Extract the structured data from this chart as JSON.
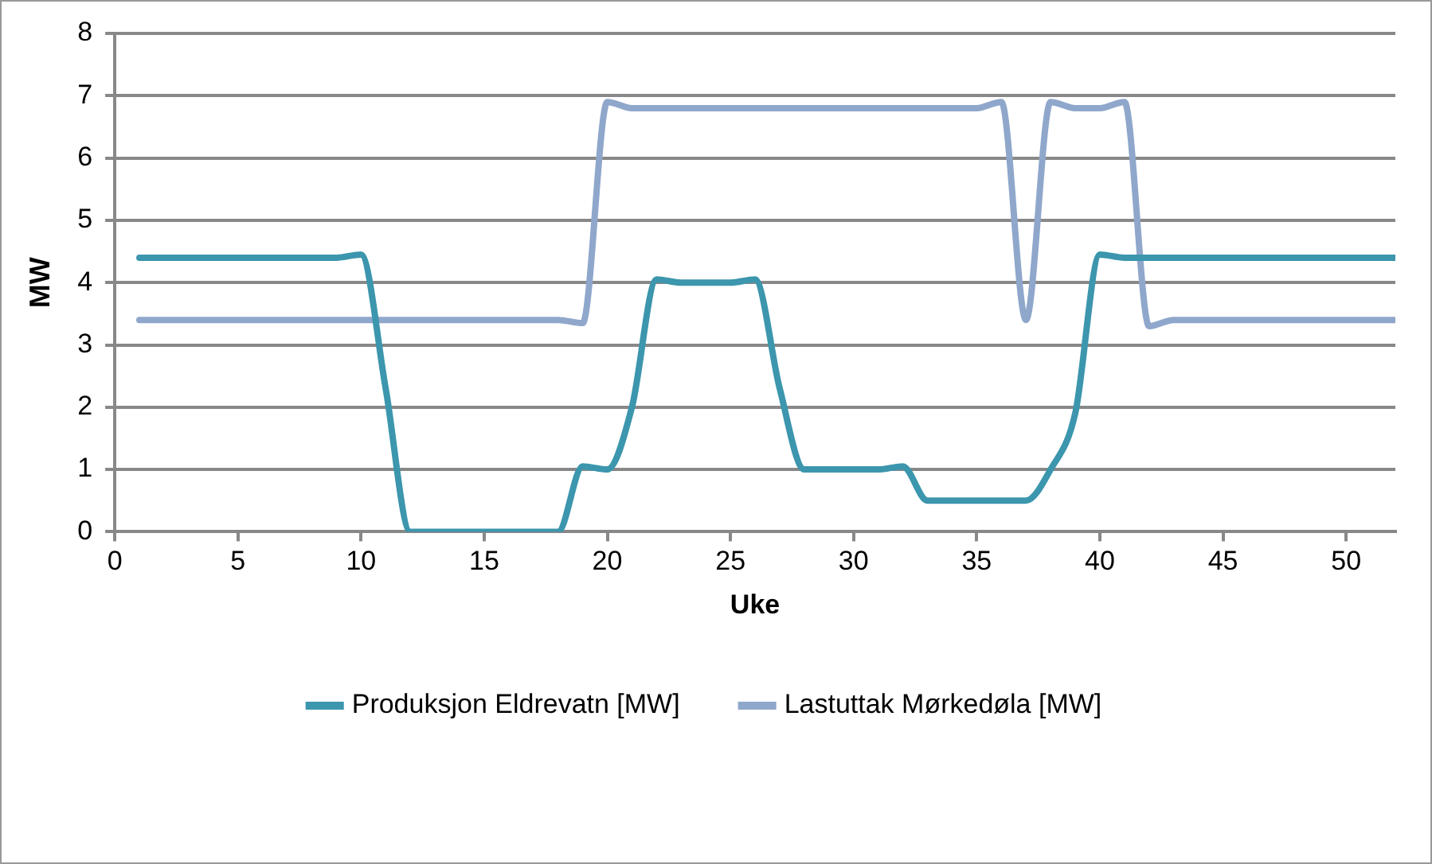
{
  "chart_data": {
    "type": "line",
    "xlabel": "Uke",
    "ylabel": "MW",
    "x": [
      1,
      2,
      3,
      4,
      5,
      6,
      7,
      8,
      9,
      10,
      11,
      12,
      13,
      14,
      15,
      16,
      17,
      18,
      19,
      20,
      21,
      22,
      23,
      24,
      25,
      26,
      27,
      28,
      29,
      30,
      31,
      32,
      33,
      34,
      35,
      36,
      37,
      38,
      39,
      40,
      41,
      42,
      43,
      44,
      45,
      46,
      47,
      48,
      49,
      50,
      51,
      52
    ],
    "series": [
      {
        "name": "Produksjon Eldrevatn [MW]",
        "color": "#3c96ad",
        "values": [
          4.4,
          4.4,
          4.4,
          4.4,
          4.4,
          4.4,
          4.4,
          4.4,
          4.4,
          4.45,
          2.3,
          0,
          0,
          0,
          0,
          0,
          0,
          0,
          1.05,
          1.0,
          2.0,
          4.05,
          4.0,
          4.0,
          4.0,
          4.05,
          2.3,
          1.0,
          1.0,
          1.0,
          1.0,
          1.05,
          0.5,
          0.5,
          0.5,
          0.5,
          0.5,
          1.0,
          1.9,
          4.45,
          4.4,
          4.4,
          4.4,
          4.4,
          4.4,
          4.4,
          4.4,
          4.4,
          4.4,
          4.4,
          4.4,
          4.4
        ]
      },
      {
        "name": "Lastuttak Mørkedøla [MW]",
        "color": "#8fa7cb",
        "values": [
          3.4,
          3.4,
          3.4,
          3.4,
          3.4,
          3.4,
          3.4,
          3.4,
          3.4,
          3.4,
          3.4,
          3.4,
          3.4,
          3.4,
          3.4,
          3.4,
          3.4,
          3.4,
          3.35,
          6.9,
          6.8,
          6.8,
          6.8,
          6.8,
          6.8,
          6.8,
          6.8,
          6.8,
          6.8,
          6.8,
          6.8,
          6.8,
          6.8,
          6.8,
          6.8,
          6.9,
          3.4,
          6.9,
          6.8,
          6.8,
          6.9,
          3.3,
          3.4,
          3.4,
          3.4,
          3.4,
          3.4,
          3.4,
          3.4,
          3.4,
          3.4,
          3.4
        ]
      }
    ],
    "xlim": [
      0,
      52
    ],
    "xticks": [
      0,
      5,
      10,
      15,
      20,
      25,
      30,
      35,
      40,
      45,
      50
    ],
    "ylim": [
      0,
      8
    ],
    "yticks": [
      0,
      1,
      2,
      3,
      4,
      5,
      6,
      7,
      8
    ],
    "grid": "y",
    "legend": "bottom",
    "marker": "none",
    "line_style": "solid"
  }
}
